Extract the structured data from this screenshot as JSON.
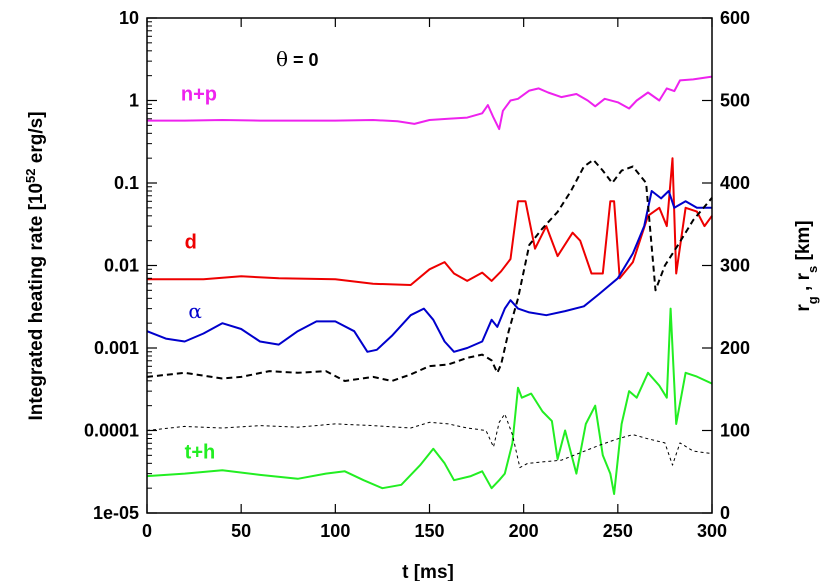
{
  "chart_data": {
    "type": "line",
    "xlabel": "t [ms]",
    "ylabel_left": {
      "main": "Integrated heating rate [10",
      "sup": "52",
      "tail": " erg/s]"
    },
    "ylabel_right": {
      "r1": "r",
      "s1": "g",
      "sep": " ,  ",
      "r2": "r",
      "s2": "s",
      "tail": " [km]"
    },
    "annotation": {
      "theta": "θ",
      "rest": " = 0"
    },
    "xlim": [
      0,
      300
    ],
    "ylim_left": [
      1e-05,
      10
    ],
    "yscale_left": "log",
    "ylim_right": [
      0,
      600
    ],
    "x_ticks": [
      "0",
      "50",
      "100",
      "150",
      "200",
      "250",
      "300"
    ],
    "left_ticks": [
      {
        "value": 10,
        "label": "10"
      },
      {
        "value": 1,
        "label": "1"
      },
      {
        "value": 0.1,
        "label": "0.1"
      },
      {
        "value": 0.01,
        "label": "0.01"
      },
      {
        "value": 0.001,
        "label": "0.001"
      },
      {
        "value": 0.0001,
        "label": "0.0001"
      },
      {
        "value": 1e-05,
        "label": "1e-05"
      }
    ],
    "right_ticks": [
      "0",
      "100",
      "200",
      "300",
      "400",
      "500",
      "600"
    ],
    "series": [
      {
        "name": "n+p",
        "color": "#ee22ee",
        "axis": "left",
        "label_at": [
          18,
          1.0
        ],
        "points": [
          [
            0,
            0.57
          ],
          [
            20,
            0.57
          ],
          [
            40,
            0.58
          ],
          [
            60,
            0.57
          ],
          [
            80,
            0.57
          ],
          [
            100,
            0.57
          ],
          [
            120,
            0.58
          ],
          [
            133,
            0.56
          ],
          [
            142,
            0.52
          ],
          [
            150,
            0.58
          ],
          [
            160,
            0.6
          ],
          [
            170,
            0.62
          ],
          [
            178,
            0.7
          ],
          [
            181,
            0.88
          ],
          [
            184,
            0.62
          ],
          [
            187,
            0.45
          ],
          [
            189,
            0.75
          ],
          [
            193,
            1.0
          ],
          [
            197,
            1.05
          ],
          [
            203,
            1.32
          ],
          [
            208,
            1.4
          ],
          [
            213,
            1.25
          ],
          [
            220,
            1.1
          ],
          [
            228,
            1.2
          ],
          [
            234,
            1.0
          ],
          [
            238,
            0.85
          ],
          [
            243,
            1.05
          ],
          [
            250,
            0.95
          ],
          [
            256,
            0.8
          ],
          [
            260,
            1.0
          ],
          [
            266,
            1.25
          ],
          [
            272,
            1.0
          ],
          [
            276,
            1.4
          ],
          [
            280,
            1.3
          ],
          [
            283,
            1.75
          ],
          [
            290,
            1.8
          ],
          [
            300,
            1.95
          ]
        ]
      },
      {
        "name": "d",
        "color": "#ee0000",
        "axis": "left",
        "label_at": [
          20,
          0.016
        ],
        "points": [
          [
            0,
            0.0068
          ],
          [
            30,
            0.0068
          ],
          [
            50,
            0.0074
          ],
          [
            70,
            0.007
          ],
          [
            100,
            0.0068
          ],
          [
            120,
            0.006
          ],
          [
            140,
            0.0058
          ],
          [
            150,
            0.009
          ],
          [
            158,
            0.011
          ],
          [
            163,
            0.008
          ],
          [
            170,
            0.0065
          ],
          [
            178,
            0.0082
          ],
          [
            183,
            0.0065
          ],
          [
            188,
            0.0085
          ],
          [
            193,
            0.012
          ],
          [
            197,
            0.06
          ],
          [
            201,
            0.06
          ],
          [
            206,
            0.016
          ],
          [
            212,
            0.03
          ],
          [
            218,
            0.013
          ],
          [
            226,
            0.025
          ],
          [
            230,
            0.02
          ],
          [
            236,
            0.008
          ],
          [
            242,
            0.008
          ],
          [
            246,
            0.06
          ],
          [
            248,
            0.06
          ],
          [
            251,
            0.007
          ],
          [
            258,
            0.011
          ],
          [
            266,
            0.04
          ],
          [
            272,
            0.05
          ],
          [
            276,
            0.03
          ],
          [
            279,
            0.2
          ],
          [
            281,
            0.008
          ],
          [
            286,
            0.05
          ],
          [
            292,
            0.045
          ],
          [
            296,
            0.03
          ],
          [
            300,
            0.04
          ]
        ]
      },
      {
        "name": "α",
        "color": "#0000cc",
        "axis": "left",
        "label_at": [
          22,
          0.0023
        ],
        "points": [
          [
            0,
            0.0016
          ],
          [
            10,
            0.0013
          ],
          [
            20,
            0.0012
          ],
          [
            30,
            0.0015
          ],
          [
            40,
            0.002
          ],
          [
            50,
            0.0017
          ],
          [
            60,
            0.0012
          ],
          [
            70,
            0.0011
          ],
          [
            80,
            0.0016
          ],
          [
            90,
            0.0021
          ],
          [
            100,
            0.0021
          ],
          [
            110,
            0.0016
          ],
          [
            117,
            0.0009
          ],
          [
            122,
            0.00095
          ],
          [
            130,
            0.0014
          ],
          [
            140,
            0.0025
          ],
          [
            147,
            0.003
          ],
          [
            152,
            0.0022
          ],
          [
            158,
            0.0012
          ],
          [
            163,
            0.0009
          ],
          [
            170,
            0.001
          ],
          [
            178,
            0.0012
          ],
          [
            183,
            0.0022
          ],
          [
            186,
            0.0018
          ],
          [
            190,
            0.003
          ],
          [
            193,
            0.0038
          ],
          [
            197,
            0.003
          ],
          [
            203,
            0.0027
          ],
          [
            212,
            0.0025
          ],
          [
            222,
            0.0028
          ],
          [
            232,
            0.0032
          ],
          [
            240,
            0.0045
          ],
          [
            250,
            0.007
          ],
          [
            258,
            0.014
          ],
          [
            264,
            0.03
          ],
          [
            268,
            0.08
          ],
          [
            273,
            0.065
          ],
          [
            277,
            0.08
          ],
          [
            280,
            0.05
          ],
          [
            286,
            0.06
          ],
          [
            292,
            0.05
          ],
          [
            300,
            0.05
          ]
        ]
      },
      {
        "name": "t+h",
        "color": "#22ee22",
        "axis": "left",
        "label_at": [
          20,
          4.6e-05
        ],
        "points": [
          [
            0,
            2.8e-05
          ],
          [
            20,
            3e-05
          ],
          [
            40,
            3.3e-05
          ],
          [
            60,
            2.9e-05
          ],
          [
            80,
            2.6e-05
          ],
          [
            95,
            3e-05
          ],
          [
            105,
            3.2e-05
          ],
          [
            115,
            2.5e-05
          ],
          [
            125,
            2e-05
          ],
          [
            135,
            2.2e-05
          ],
          [
            145,
            3.8e-05
          ],
          [
            152,
            6e-05
          ],
          [
            158,
            4e-05
          ],
          [
            163,
            2.5e-05
          ],
          [
            172,
            2.8e-05
          ],
          [
            178,
            3.2e-05
          ],
          [
            183,
            2e-05
          ],
          [
            187,
            2.5e-05
          ],
          [
            190,
            3e-05
          ],
          [
            194,
            7e-05
          ],
          [
            197,
            0.00033
          ],
          [
            199,
            0.00025
          ],
          [
            204,
            0.00028
          ],
          [
            210,
            0.00017
          ],
          [
            215,
            0.00013
          ],
          [
            218,
            4.5e-05
          ],
          [
            222,
            0.0001
          ],
          [
            228,
            3e-05
          ],
          [
            233,
            0.00012
          ],
          [
            238,
            0.0002
          ],
          [
            242,
            5e-05
          ],
          [
            246,
            3e-05
          ],
          [
            248,
            1.7e-05
          ],
          [
            252,
            0.00012
          ],
          [
            256,
            0.0003
          ],
          [
            260,
            0.00025
          ],
          [
            266,
            0.0005
          ],
          [
            272,
            0.00035
          ],
          [
            276,
            0.00025
          ],
          [
            278,
            0.003
          ],
          [
            281,
            0.00012
          ],
          [
            286,
            0.0005
          ],
          [
            292,
            0.00045
          ],
          [
            300,
            0.00037
          ]
        ]
      },
      {
        "name": "",
        "color": "#000000",
        "dash": "6,4",
        "width": 2,
        "axis": "right",
        "points": [
          [
            0,
            165
          ],
          [
            20,
            170
          ],
          [
            40,
            163
          ],
          [
            50,
            165
          ],
          [
            65,
            172
          ],
          [
            80,
            170
          ],
          [
            95,
            172
          ],
          [
            105,
            160
          ],
          [
            120,
            165
          ],
          [
            130,
            160
          ],
          [
            140,
            168
          ],
          [
            150,
            178
          ],
          [
            160,
            180
          ],
          [
            170,
            188
          ],
          [
            178,
            192
          ],
          [
            183,
            185
          ],
          [
            186,
            170
          ],
          [
            188,
            180
          ],
          [
            192,
            220
          ],
          [
            197,
            260
          ],
          [
            203,
            325
          ],
          [
            210,
            345
          ],
          [
            218,
            365
          ],
          [
            225,
            390
          ],
          [
            232,
            420
          ],
          [
            237,
            428
          ],
          [
            242,
            415
          ],
          [
            247,
            400
          ],
          [
            252,
            415
          ],
          [
            258,
            420
          ],
          [
            265,
            400
          ],
          [
            270,
            270
          ],
          [
            275,
            300
          ],
          [
            282,
            325
          ],
          [
            290,
            355
          ],
          [
            300,
            382
          ]
        ]
      },
      {
        "name": "",
        "color": "#000000",
        "dash": "3,3",
        "width": 1,
        "axis": "right",
        "points": [
          [
            0,
            100
          ],
          [
            20,
            105
          ],
          [
            40,
            103
          ],
          [
            60,
            106
          ],
          [
            80,
            104
          ],
          [
            100,
            108
          ],
          [
            120,
            106
          ],
          [
            140,
            103
          ],
          [
            150,
            110
          ],
          [
            160,
            108
          ],
          [
            170,
            103
          ],
          [
            180,
            100
          ],
          [
            184,
            80
          ],
          [
            187,
            110
          ],
          [
            190,
            120
          ],
          [
            194,
            95
          ],
          [
            198,
            55
          ],
          [
            202,
            60
          ],
          [
            210,
            62
          ],
          [
            220,
            64
          ],
          [
            230,
            73
          ],
          [
            240,
            82
          ],
          [
            250,
            90
          ],
          [
            258,
            95
          ],
          [
            266,
            90
          ],
          [
            275,
            85
          ],
          [
            279,
            58
          ],
          [
            283,
            85
          ],
          [
            290,
            75
          ],
          [
            300,
            72
          ]
        ]
      }
    ]
  }
}
